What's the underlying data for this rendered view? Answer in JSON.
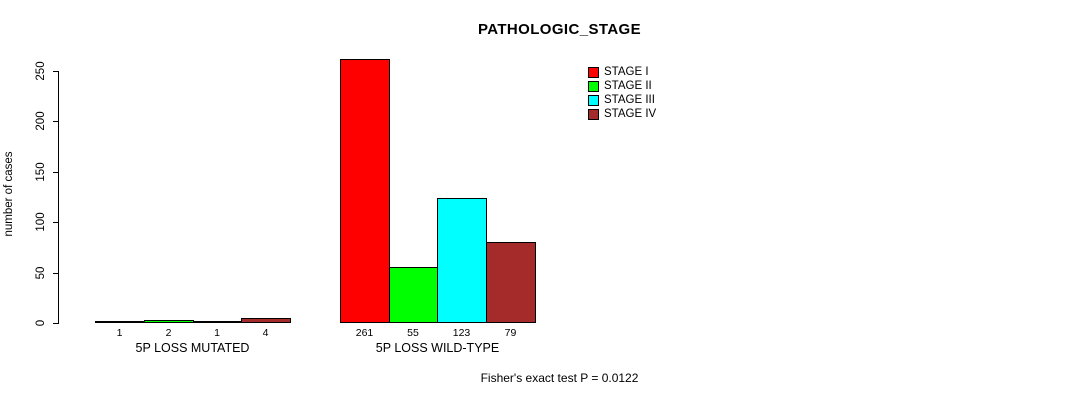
{
  "title": "PATHOLOGIC_STAGE",
  "footer": "Fisher's exact test P = 0.0122",
  "y_axis": {
    "label": "number of cases",
    "ticks": [
      0,
      50,
      100,
      150,
      200,
      250
    ]
  },
  "chart_data": {
    "type": "bar",
    "title": "PATHOLOGIC_STAGE",
    "xlabel": "",
    "ylabel": "number of cases",
    "ylim": [
      0,
      250
    ],
    "grid": false,
    "legend_position": "top-right",
    "categories": [
      "5P LOSS MUTATED",
      "5P LOSS WILD-TYPE"
    ],
    "series": [
      {
        "name": "STAGE I",
        "color": "#FF0000",
        "values": [
          1,
          261
        ]
      },
      {
        "name": "STAGE II",
        "color": "#00FF00",
        "values": [
          2,
          55
        ]
      },
      {
        "name": "STAGE III",
        "color": "#00FFFF",
        "values": [
          1,
          123
        ]
      },
      {
        "name": "STAGE IV",
        "color": "#A52A2A",
        "values": [
          4,
          79
        ]
      }
    ],
    "bar_labels": [
      [
        "1",
        "2",
        "1",
        "4"
      ],
      [
        "261",
        "55",
        "123",
        "79"
      ]
    ],
    "annotation": "Fisher's exact test P = 0.0122"
  }
}
